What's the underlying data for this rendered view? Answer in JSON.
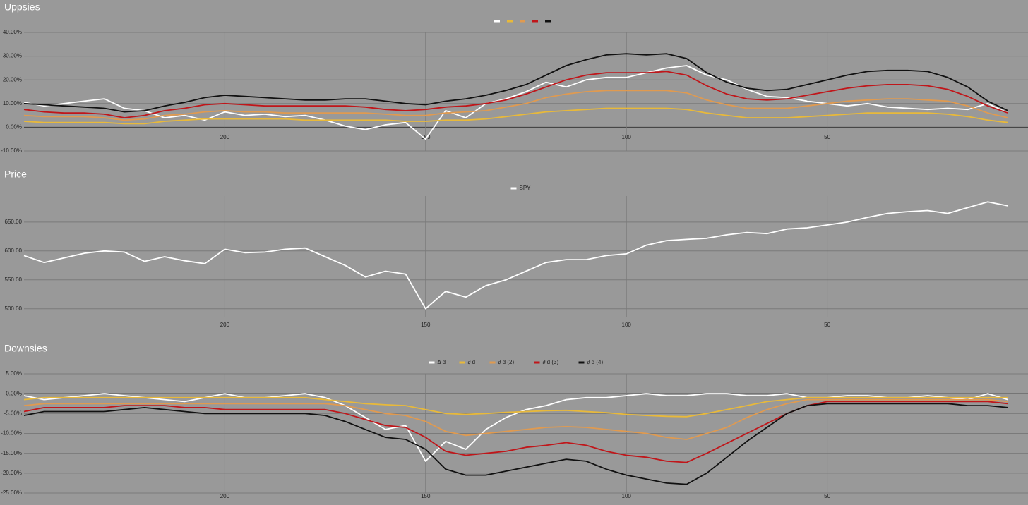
{
  "chart_data": [
    {
      "type": "line",
      "title": "Uppsies",
      "x": [
        250,
        245,
        240,
        235,
        230,
        225,
        220,
        215,
        210,
        205,
        200,
        195,
        190,
        185,
        180,
        175,
        170,
        165,
        160,
        155,
        150,
        145,
        140,
        135,
        130,
        125,
        120,
        115,
        110,
        105,
        100,
        95,
        90,
        85,
        80,
        75,
        70,
        65,
        60,
        55,
        50,
        45,
        40,
        35,
        30,
        25,
        20,
        15,
        10,
        5
      ],
      "xlim": [
        250,
        0
      ],
      "xticks": [
        200,
        150,
        100,
        50
      ],
      "ylim": [
        -10,
        40
      ],
      "yticks": [
        {
          "value": -10,
          "label": "-10.00%"
        },
        {
          "value": 0,
          "label": "0.00%"
        },
        {
          "value": 10,
          "label": "10.00%"
        },
        {
          "value": 20,
          "label": "20.00%"
        },
        {
          "value": 30,
          "label": "30.00%"
        },
        {
          "value": 40,
          "label": "40.00%"
        }
      ],
      "grid": true,
      "legend": "top",
      "series": [
        {
          "color": "#ffffff",
          "values": [
            10.5,
            9,
            10,
            11,
            12,
            8,
            7,
            4,
            5,
            3,
            6.5,
            5,
            5.5,
            4.5,
            5,
            3,
            0.5,
            -1,
            1,
            2,
            -5,
            7,
            4,
            10,
            12,
            15,
            19,
            17,
            20,
            21,
            21,
            23,
            25,
            26,
            22,
            20,
            16,
            13,
            12.5,
            11,
            10,
            9,
            10,
            8.5,
            8,
            7.5,
            8,
            7.5,
            10,
            6
          ]
        },
        {
          "color": "#e8b93a",
          "values": [
            2.5,
            2,
            2,
            2,
            2,
            1.5,
            1.5,
            2.5,
            3,
            3.5,
            3.5,
            3.5,
            3.5,
            3.5,
            3,
            3,
            3,
            3,
            3,
            2.5,
            2.5,
            3,
            3,
            3.5,
            4.5,
            5.5,
            6.5,
            7,
            7.5,
            8,
            8,
            8,
            8,
            7.5,
            6,
            5,
            4,
            4,
            4,
            4.5,
            5,
            5.5,
            6,
            6,
            6,
            6,
            5.5,
            4.5,
            3,
            2
          ]
        },
        {
          "color": "#e09a50",
          "values": [
            5,
            4.5,
            4.5,
            4.5,
            4,
            3,
            3.5,
            5,
            5.5,
            6.5,
            7,
            6.5,
            6.5,
            6,
            6,
            6,
            6,
            6,
            5.5,
            5,
            5,
            6,
            6.5,
            7,
            8.5,
            10,
            12.5,
            14,
            15,
            15.5,
            15.5,
            15.5,
            15.5,
            14.5,
            11.5,
            9.5,
            8,
            8,
            8,
            9,
            10,
            11,
            11.5,
            12,
            12,
            11.5,
            11,
            9,
            6,
            4
          ]
        },
        {
          "color": "#c0161a",
          "values": [
            7.5,
            6.5,
            6,
            6,
            5.5,
            4,
            5,
            7,
            8,
            9.5,
            10,
            9.5,
            9,
            9,
            9,
            9,
            9,
            8.5,
            7.5,
            7,
            7.5,
            8.5,
            9,
            10,
            11.5,
            14,
            17,
            20,
            22,
            23,
            23,
            23,
            23.5,
            22,
            17.5,
            14,
            12,
            11.5,
            12,
            13.5,
            15,
            16.5,
            17.5,
            18,
            18,
            17.5,
            16,
            13,
            9,
            6
          ]
        },
        {
          "color": "#111111",
          "values": [
            10,
            9.5,
            9,
            8.5,
            8,
            6.5,
            7,
            9,
            10.5,
            12.5,
            13.5,
            13,
            12.5,
            12,
            11.5,
            11.5,
            12,
            12,
            11,
            10,
            9.5,
            11,
            12,
            13.5,
            15.5,
            18,
            22,
            26,
            28.5,
            30.5,
            31,
            30.5,
            31,
            29,
            23,
            19,
            16.5,
            15.5,
            16,
            18,
            20,
            22,
            23.5,
            24,
            24,
            23.5,
            21,
            17,
            11,
            7
          ]
        }
      ]
    },
    {
      "type": "line",
      "title": "Price",
      "x": [
        250,
        245,
        240,
        235,
        230,
        225,
        220,
        215,
        210,
        205,
        200,
        195,
        190,
        185,
        180,
        175,
        170,
        165,
        160,
        155,
        150,
        145,
        140,
        135,
        130,
        125,
        120,
        115,
        110,
        105,
        100,
        95,
        90,
        85,
        80,
        75,
        70,
        65,
        60,
        55,
        50,
        45,
        40,
        35,
        30,
        25,
        20,
        15,
        10,
        5
      ],
      "xlim": [
        250,
        0
      ],
      "xticks": [
        200,
        150,
        100,
        50
      ],
      "ylim": [
        485,
        695
      ],
      "yticks": [
        {
          "value": 500,
          "label": "500.00"
        },
        {
          "value": 550,
          "label": "550.00"
        },
        {
          "value": 600,
          "label": "600.00"
        },
        {
          "value": 650,
          "label": "650.00"
        }
      ],
      "grid": true,
      "legend": "top",
      "series": [
        {
          "name": "SPY",
          "color": "#ffffff",
          "values": [
            592,
            580,
            588,
            596,
            600,
            598,
            582,
            590,
            583,
            578,
            603,
            597,
            598,
            603,
            605,
            590,
            575,
            555,
            565,
            560,
            500,
            530,
            520,
            540,
            550,
            565,
            580,
            585,
            585,
            592,
            595,
            610,
            618,
            620,
            622,
            628,
            632,
            630,
            638,
            640,
            645,
            650,
            658,
            665,
            668,
            670,
            665,
            675,
            685,
            678
          ]
        }
      ]
    },
    {
      "type": "line",
      "title": "Downsies",
      "x": [
        250,
        245,
        240,
        235,
        230,
        225,
        220,
        215,
        210,
        205,
        200,
        195,
        190,
        185,
        180,
        175,
        170,
        165,
        160,
        155,
        150,
        145,
        140,
        135,
        130,
        125,
        120,
        115,
        110,
        105,
        100,
        95,
        90,
        85,
        80,
        75,
        70,
        65,
        60,
        55,
        50,
        45,
        40,
        35,
        30,
        25,
        20,
        15,
        10,
        5
      ],
      "xlim": [
        250,
        0
      ],
      "xticks": [
        200,
        150,
        100,
        50
      ],
      "ylim": [
        -25,
        5
      ],
      "yticks": [
        {
          "value": -25,
          "label": "-25.00%"
        },
        {
          "value": -20,
          "label": "-20.00%"
        },
        {
          "value": -15,
          "label": "-15.00%"
        },
        {
          "value": -10,
          "label": "-10.00%"
        },
        {
          "value": -5,
          "label": "-5.00%"
        },
        {
          "value": 0,
          "label": "0.00%"
        },
        {
          "value": 5,
          "label": "5.00%"
        }
      ],
      "grid": true,
      "legend": "top",
      "series": [
        {
          "name": "Δ d",
          "color": "#ffffff",
          "values": [
            -0.5,
            -1.5,
            -1,
            -0.5,
            0,
            -0.5,
            -1,
            -1.5,
            -2,
            -1,
            0,
            -1,
            -1,
            -0.5,
            0,
            -1,
            -3,
            -6,
            -9,
            -8,
            -17,
            -12,
            -14,
            -9,
            -6,
            -4,
            -3,
            -1.5,
            -1,
            -1,
            -0.5,
            0,
            -0.5,
            -0.5,
            0,
            0,
            -0.5,
            -0.5,
            0,
            -1,
            -1,
            -0.5,
            -0.5,
            -1,
            -1,
            -0.5,
            -1,
            -1.5,
            0,
            -1.5
          ]
        },
        {
          "name": "∂ d",
          "color": "#e8b93a",
          "values": [
            -1.5,
            -1,
            -1,
            -1,
            -1,
            -1,
            -1,
            -1,
            -1,
            -1,
            -1,
            -1,
            -1,
            -1,
            -1,
            -1.5,
            -2,
            -2.5,
            -2.8,
            -3,
            -4,
            -5,
            -5.2,
            -5,
            -4.7,
            -4.5,
            -4.3,
            -4.2,
            -4.5,
            -4.8,
            -5.2,
            -5.5,
            -5.7,
            -5.8,
            -5,
            -4,
            -3,
            -2,
            -1.5,
            -1,
            -1,
            -1,
            -1,
            -1,
            -1,
            -1,
            -1,
            -1,
            -1,
            -1
          ]
        },
        {
          "name": "∂ d (2)",
          "color": "#e09a50",
          "values": [
            -3,
            -2.5,
            -2.5,
            -2.5,
            -2.5,
            -2.5,
            -2.5,
            -2.5,
            -2.5,
            -2.5,
            -2.5,
            -2.5,
            -2.5,
            -2.5,
            -2.5,
            -2.5,
            -3,
            -4,
            -5,
            -5.5,
            -7,
            -9.5,
            -10.5,
            -10,
            -9.5,
            -9,
            -8.5,
            -8.3,
            -8.5,
            -9,
            -9.5,
            -10,
            -11,
            -11.5,
            -10,
            -8.5,
            -6,
            -4,
            -2.5,
            -1.5,
            -1.5,
            -1.5,
            -1.5,
            -1.5,
            -1.5,
            -1.5,
            -1.5,
            -1.5,
            -1.5,
            -2
          ]
        },
        {
          "name": "∂ d (3)",
          "color": "#c0161a",
          "values": [
            -4.5,
            -3.5,
            -3.5,
            -3.5,
            -3.5,
            -3,
            -3,
            -3,
            -3.5,
            -3.5,
            -4,
            -4,
            -4,
            -4,
            -4,
            -4,
            -5,
            -6.5,
            -8,
            -8.5,
            -11,
            -14.5,
            -15.5,
            -15,
            -14.5,
            -13.5,
            -13,
            -12.3,
            -13,
            -14.5,
            -15.5,
            -16,
            -17,
            -17.3,
            -15,
            -12.5,
            -10,
            -7.5,
            -5,
            -3,
            -2,
            -2,
            -2,
            -2,
            -2,
            -2,
            -2,
            -2,
            -2,
            -2.5
          ]
        },
        {
          "name": "∂ d (4)",
          "color": "#111111",
          "values": [
            -5.5,
            -4.5,
            -4.5,
            -4.5,
            -4.5,
            -4,
            -3.5,
            -4,
            -4.5,
            -5,
            -5,
            -5,
            -5,
            -5,
            -5,
            -5.5,
            -7,
            -9,
            -11,
            -11.5,
            -14,
            -19,
            -20.5,
            -20.5,
            -19.5,
            -18.5,
            -17.5,
            -16.5,
            -17,
            -19,
            -20.5,
            -21.5,
            -22.5,
            -22.8,
            -20,
            -16,
            -12,
            -8.5,
            -5,
            -3,
            -2.5,
            -2.5,
            -2.5,
            -2.5,
            -2.5,
            -2.5,
            -2.5,
            -3,
            -3,
            -3.5
          ]
        }
      ]
    }
  ]
}
